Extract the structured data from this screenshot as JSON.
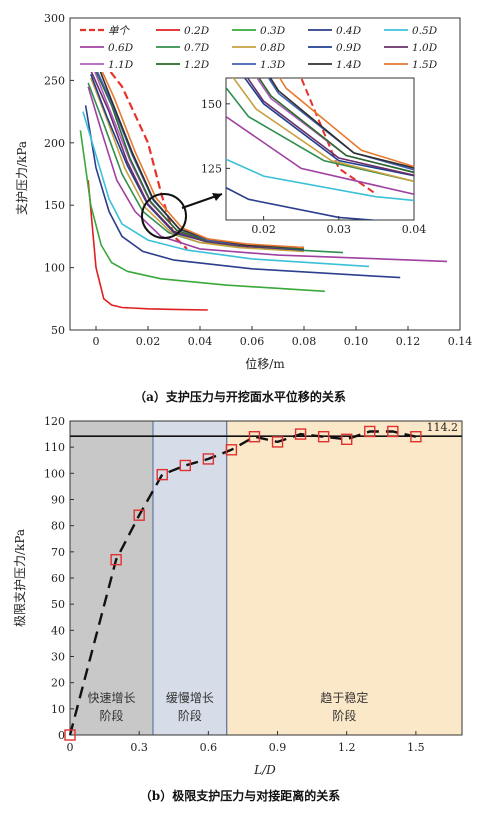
{
  "chart_data": [
    {
      "type": "line",
      "xlabel": "位移/m",
      "ylabel": "支护压力/kPa",
      "xlim": [
        -0.01,
        0.14
      ],
      "ylim": [
        50,
        300
      ],
      "xticks": [
        "0",
        "0.02",
        "0.04",
        "0.06",
        "0.08",
        "0.10",
        "0.12",
        "0.14"
      ],
      "yticks": [
        "50",
        "100",
        "150",
        "200",
        "250",
        "300"
      ],
      "caption": "（a）支护压力与开挖面水平位移的关系",
      "legend_labels": [
        "单个",
        "0.2D",
        "0.3D",
        "0.4D",
        "0.5D",
        "0.6D",
        "0.7D",
        "0.8D",
        "0.9D",
        "1.0D",
        "1.1D",
        "1.2D",
        "1.3D",
        "1.4D",
        "1.5D"
      ],
      "series": [
        {
          "name": "单个",
          "color": "#e6332a",
          "dash": true,
          "x": [
            0.0,
            0.01,
            0.02,
            0.025,
            0.03,
            0.035
          ],
          "y": [
            272,
            245,
            200,
            160,
            125,
            115
          ]
        },
        {
          "name": "0.2D",
          "color": "#e02020",
          "x": [
            -0.003,
            0.0,
            0.003,
            0.006,
            0.01,
            0.02,
            0.03,
            0.043
          ],
          "y": [
            170,
            100,
            75,
            70,
            68,
            67,
            66.5,
            66
          ]
        },
        {
          "name": "0.3D",
          "color": "#3aa83a",
          "x": [
            -0.006,
            -0.002,
            0.002,
            0.006,
            0.012,
            0.025,
            0.05,
            0.088
          ],
          "y": [
            210,
            150,
            118,
            104,
            97,
            91,
            86,
            81
          ]
        },
        {
          "name": "0.4D",
          "color": "#2c3e8c",
          "x": [
            -0.004,
            0.0,
            0.005,
            0.01,
            0.018,
            0.03,
            0.06,
            0.117
          ],
          "y": [
            230,
            180,
            145,
            125,
            113,
            106,
            99,
            92
          ]
        },
        {
          "name": "0.5D",
          "color": "#3bc0d8",
          "x": [
            -0.005,
            0.0,
            0.005,
            0.01,
            0.02,
            0.035,
            0.06,
            0.105
          ],
          "y": [
            225,
            190,
            155,
            135,
            122,
            114,
            107,
            101
          ]
        },
        {
          "name": "0.6D",
          "color": "#a040a0",
          "x": [
            -0.003,
            0.002,
            0.008,
            0.015,
            0.025,
            0.04,
            0.07,
            0.135
          ],
          "y": [
            245,
            210,
            170,
            145,
            125,
            115,
            110,
            105
          ]
        },
        {
          "name": "0.7D",
          "color": "#2f8f4f",
          "x": [
            -0.003,
            0.003,
            0.01,
            0.018,
            0.028,
            0.04,
            0.06,
            0.095
          ],
          "y": [
            248,
            215,
            175,
            145,
            128,
            120,
            116,
            112
          ]
        },
        {
          "name": "0.8D",
          "color": "#c8a040",
          "x": [
            -0.002,
            0.004,
            0.011,
            0.019,
            0.029,
            0.04,
            0.055,
            0.08
          ],
          "y": [
            252,
            220,
            180,
            148,
            128,
            120,
            116,
            113
          ]
        },
        {
          "name": "0.9D",
          "color": "#1f3f8f",
          "x": [
            -0.002,
            0.004,
            0.012,
            0.02,
            0.03,
            0.042,
            0.058,
            0.08
          ],
          "y": [
            255,
            222,
            182,
            150,
            128,
            121,
            117,
            114
          ]
        },
        {
          "name": "1.0D",
          "color": "#6a2f6a",
          "x": [
            -0.002,
            0.005,
            0.012,
            0.02,
            0.03,
            0.042,
            0.058,
            0.08
          ],
          "y": [
            258,
            225,
            185,
            151,
            129,
            121,
            117,
            115
          ]
        },
        {
          "name": "1.1D",
          "color": "#b060c0",
          "x": [
            -0.001,
            0.005,
            0.013,
            0.021,
            0.031,
            0.042,
            0.058,
            0.08
          ],
          "y": [
            260,
            228,
            186,
            152,
            130,
            122,
            118,
            115
          ]
        },
        {
          "name": "1.2D",
          "color": "#2a6a2a",
          "x": [
            -0.001,
            0.006,
            0.013,
            0.021,
            0.031,
            0.042,
            0.058,
            0.08
          ],
          "y": [
            262,
            230,
            188,
            153,
            130,
            122,
            118,
            115
          ]
        },
        {
          "name": "1.3D",
          "color": "#4060b0",
          "x": [
            -0.001,
            0.006,
            0.014,
            0.022,
            0.032,
            0.043,
            0.058,
            0.08
          ],
          "y": [
            264,
            232,
            190,
            154,
            131,
            122,
            118,
            116
          ]
        },
        {
          "name": "1.4D",
          "color": "#303030",
          "x": [
            0.0,
            0.006,
            0.014,
            0.022,
            0.032,
            0.043,
            0.058,
            0.08
          ],
          "y": [
            266,
            234,
            192,
            155,
            131,
            123,
            118,
            116
          ]
        },
        {
          "name": "1.5D",
          "color": "#e87a30",
          "x": [
            0.0,
            0.007,
            0.015,
            0.023,
            0.033,
            0.043,
            0.058,
            0.08
          ],
          "y": [
            268,
            236,
            193,
            156,
            132,
            123,
            119,
            116
          ]
        }
      ],
      "inset": {
        "xlim": [
          0.015,
          0.04
        ],
        "ylim": [
          105,
          160
        ],
        "xticks": [
          "0.02",
          "0.03",
          "0.04"
        ],
        "yticks": [
          "125",
          "150"
        ]
      }
    },
    {
      "type": "scatter",
      "xlabel": "L/D",
      "ylabel": "极限支护压力/kPa",
      "xlim": [
        0,
        1.7
      ],
      "ylim": [
        0,
        120
      ],
      "xticks": [
        "0",
        "0.3",
        "0.6",
        "0.9",
        "1.2",
        "1.5"
      ],
      "yticks": [
        "0",
        "10",
        "20",
        "30",
        "40",
        "50",
        "60",
        "70",
        "80",
        "90",
        "100",
        "110",
        "120"
      ],
      "caption": "（b）极限支护压力与对接距离的关系",
      "reference_line": {
        "value": 114.2,
        "label": "114.2"
      },
      "regions": [
        {
          "label": [
            "快速增长",
            "阶段"
          ],
          "x": [
            0,
            0.36
          ],
          "color": "#c8c8c8"
        },
        {
          "label": [
            "缓慢增长",
            "阶段"
          ],
          "x": [
            0.36,
            0.68
          ],
          "color": "#d6dde8"
        },
        {
          "label": [
            "趋于稳定",
            "阶段"
          ],
          "x": [
            0.68,
            1.7
          ],
          "color": "#fbe8c8"
        }
      ],
      "x": [
        0.0,
        0.2,
        0.3,
        0.4,
        0.5,
        0.6,
        0.7,
        0.8,
        0.9,
        1.0,
        1.1,
        1.2,
        1.3,
        1.4,
        1.5
      ],
      "y": [
        0,
        67,
        84,
        99.5,
        103,
        105.5,
        109,
        114,
        112,
        115,
        114,
        113,
        116,
        116,
        114
      ]
    }
  ]
}
